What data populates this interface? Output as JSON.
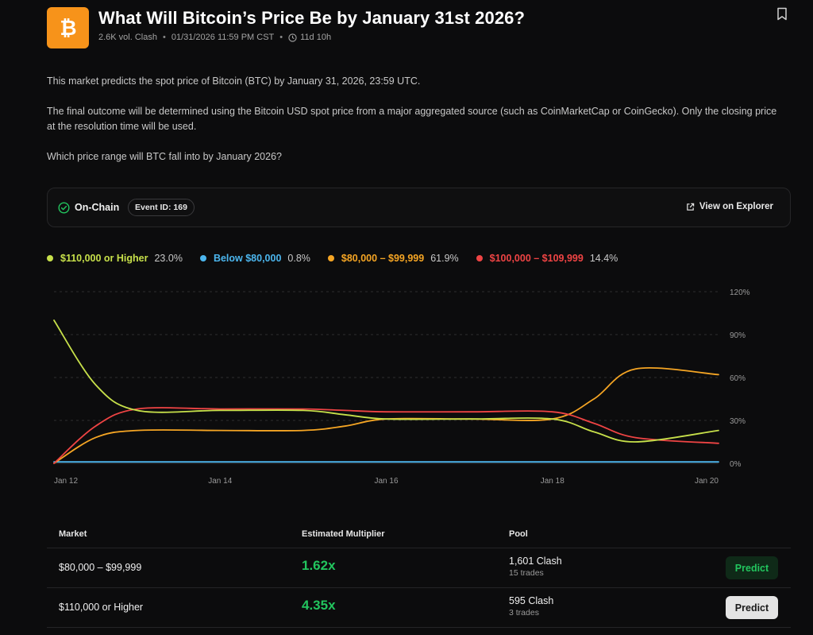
{
  "header": {
    "title": "What Will Bitcoin’s Price Be by January 31st 2026?",
    "volume": "2.6K vol. Clash",
    "end_date": "01/31/2026 11:59 PM CST",
    "time_left": "11d 10h",
    "logo_icon": "bitcoin-icon",
    "logo_color": "#f7931a"
  },
  "description": {
    "p1": "This market predicts the spot price of Bitcoin (BTC) by January 31, 2026, 23:59 UTC.",
    "p2": "The final outcome will be determined using the Bitcoin USD spot price from a major aggregated source (such as CoinMarketCap or CoinGecko). Only the closing price at the resolution time will be used.",
    "p3": "Which price range will BTC fall into by January 2026?"
  },
  "onchain": {
    "label": "On-Chain",
    "event_id": "Event ID: 169",
    "explorer_label": "View on Explorer"
  },
  "legend": [
    {
      "name": "$110,000 or Higher",
      "value": "23.0%",
      "color": "#c7e04a"
    },
    {
      "name": "Below $80,000",
      "value": "0.8%",
      "color": "#4cb6ee"
    },
    {
      "name": "$80,000 – $99,999",
      "value": "61.9%",
      "color": "#f5a524"
    },
    {
      "name": "$100,000 – $109,999",
      "value": "14.4%",
      "color": "#ef4444"
    }
  ],
  "chart_data": {
    "type": "line",
    "x": [
      "Jan 12",
      "Jan 12.5",
      "Jan 13",
      "Jan 14",
      "Jan 15",
      "Jan 15.5",
      "Jan 16",
      "Jan 17",
      "Jan 18",
      "Jan 18.5",
      "Jan 19",
      "Jan 20"
    ],
    "xticks": [
      "Jan 12",
      "Jan 14",
      "Jan 16",
      "Jan 18",
      "Jan 20"
    ],
    "yticks": [
      "0%",
      "30%",
      "60%",
      "90%",
      "120%"
    ],
    "ylim": [
      0,
      120
    ],
    "series": [
      {
        "name": "$110,000 or Higher",
        "color": "#c7e04a",
        "values": [
          100,
          55,
          37,
          37,
          37,
          34,
          31,
          31,
          31,
          22,
          15,
          23
        ]
      },
      {
        "name": "Below $80,000",
        "color": "#4cb6ee",
        "values": [
          1,
          1,
          1,
          1,
          1,
          1,
          1,
          1,
          1,
          1,
          1,
          1
        ]
      },
      {
        "name": "$80,000 – $99,999",
        "color": "#f5a524",
        "values": [
          0,
          18,
          23,
          23,
          23,
          26,
          31,
          31,
          31,
          45,
          66,
          62
        ]
      },
      {
        "name": "$100,000 – $109,999",
        "color": "#ef4444",
        "values": [
          0,
          26,
          38,
          38,
          38,
          37,
          36,
          36,
          36,
          28,
          18,
          14
        ]
      }
    ],
    "grid": true
  },
  "table": {
    "headers": {
      "market": "Market",
      "multiplier": "Estimated Multiplier",
      "pool": "Pool"
    },
    "rows": [
      {
        "market": "$80,000 – $99,999",
        "multiplier": "1.62x",
        "pool": "1,601 Clash",
        "trades": "15 trades",
        "button": "Predict"
      },
      {
        "market": "$110,000 or Higher",
        "multiplier": "4.35x",
        "pool": "595 Clash",
        "trades": "3 trades",
        "button": "Predict"
      }
    ]
  }
}
